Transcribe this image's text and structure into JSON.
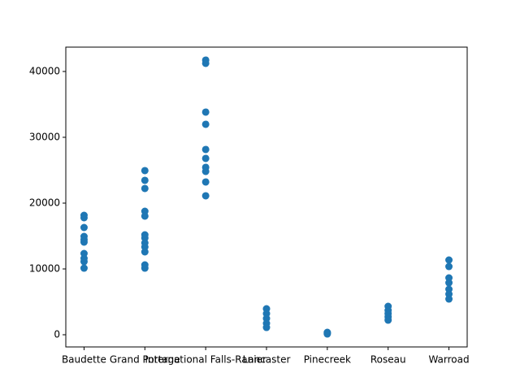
{
  "chart_data": {
    "type": "scatter",
    "color": "#1f77b4",
    "categories": [
      "Baudette",
      "Grand Portage",
      "International Falls-Ranier",
      "Lancaster",
      "Pinecreek",
      "Roseau",
      "Warroad"
    ],
    "values": [
      [
        18148,
        17778,
        16296,
        14938,
        14444,
        14074,
        12346,
        11605,
        11111,
        10123
      ],
      [
        24938,
        23457,
        22222,
        18765,
        18025,
        15185,
        14691,
        13951,
        13333,
        12593,
        10617,
        10123
      ],
      [
        41728,
        41235,
        33827,
        31975,
        28148,
        26790,
        25432,
        24815,
        23210,
        21111
      ],
      [
        3951,
        3210,
        2469,
        1728,
        1111
      ],
      [
        370,
        247,
        123
      ],
      [
        4321,
        3704,
        3210,
        2716,
        2222
      ],
      [
        11358,
        10370,
        8642,
        7901,
        6914,
        6173,
        5432
      ]
    ],
    "ylim": [
      -1850,
      43700
    ],
    "yticks": [
      0,
      10000,
      20000,
      30000,
      40000
    ]
  }
}
